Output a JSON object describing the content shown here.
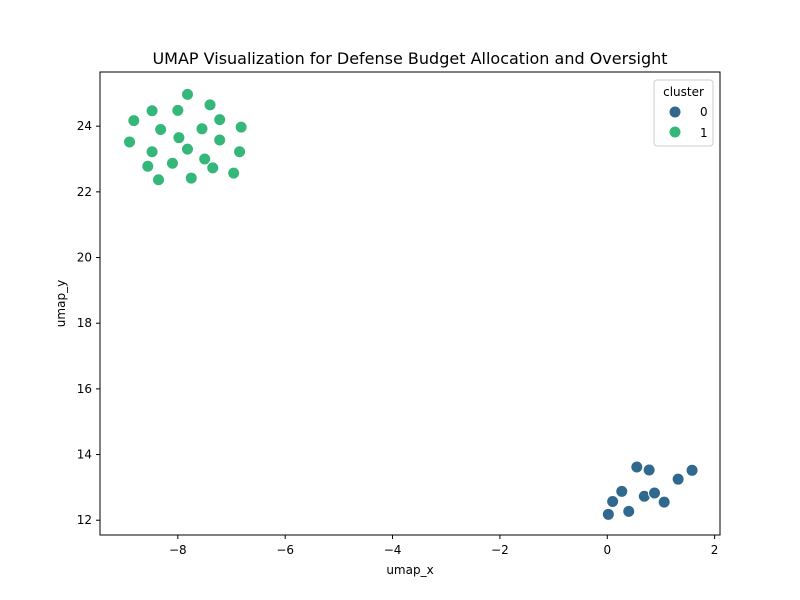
{
  "chart_data": {
    "type": "scatter",
    "title": "UMAP Visualization for Defense Budget Allocation and Oversight",
    "xlabel": "umap_x",
    "ylabel": "umap_y",
    "xlim": [
      -9.45,
      2.1
    ],
    "ylim": [
      11.55,
      25.65
    ],
    "xticks": [
      -8,
      -6,
      -4,
      -2,
      0,
      2
    ],
    "yticks": [
      12,
      14,
      16,
      18,
      20,
      22,
      24
    ],
    "xtick_labels": [
      "−8",
      "−6",
      "−4",
      "−2",
      "0",
      "2"
    ],
    "ytick_labels": [
      "12",
      "14",
      "16",
      "18",
      "20",
      "22",
      "24"
    ],
    "grid": false,
    "legend": {
      "title": "cluster",
      "placement": "top-right",
      "entries": [
        {
          "label": "0",
          "color": "#31688e"
        },
        {
          "label": "1",
          "color": "#35b779"
        }
      ]
    },
    "series": [
      {
        "cluster": "0",
        "color": "#31688e",
        "points": [
          {
            "x": 0.02,
            "y": 12.18
          },
          {
            "x": 0.1,
            "y": 12.57
          },
          {
            "x": 0.27,
            "y": 12.88
          },
          {
            "x": 0.4,
            "y": 12.27
          },
          {
            "x": 0.55,
            "y": 13.62
          },
          {
            "x": 0.69,
            "y": 12.73
          },
          {
            "x": 0.78,
            "y": 13.53
          },
          {
            "x": 0.88,
            "y": 12.83
          },
          {
            "x": 1.06,
            "y": 12.55
          },
          {
            "x": 1.32,
            "y": 13.25
          },
          {
            "x": 1.58,
            "y": 13.52
          }
        ]
      },
      {
        "cluster": "1",
        "color": "#35b779",
        "points": [
          {
            "x": -8.9,
            "y": 23.52
          },
          {
            "x": -8.82,
            "y": 24.17
          },
          {
            "x": -8.56,
            "y": 22.78
          },
          {
            "x": -8.48,
            "y": 23.22
          },
          {
            "x": -8.48,
            "y": 24.47
          },
          {
            "x": -8.36,
            "y": 22.37
          },
          {
            "x": -8.32,
            "y": 23.9
          },
          {
            "x": -8.1,
            "y": 22.87
          },
          {
            "x": -8.0,
            "y": 24.48
          },
          {
            "x": -7.98,
            "y": 23.65
          },
          {
            "x": -7.82,
            "y": 23.3
          },
          {
            "x": -7.82,
            "y": 24.97
          },
          {
            "x": -7.75,
            "y": 22.42
          },
          {
            "x": -7.55,
            "y": 23.92
          },
          {
            "x": -7.5,
            "y": 23.0
          },
          {
            "x": -7.4,
            "y": 24.65
          },
          {
            "x": -7.35,
            "y": 22.73
          },
          {
            "x": -7.22,
            "y": 24.2
          },
          {
            "x": -7.22,
            "y": 23.58
          },
          {
            "x": -6.96,
            "y": 22.57
          },
          {
            "x": -6.85,
            "y": 23.22
          },
          {
            "x": -6.82,
            "y": 23.97
          }
        ]
      }
    ]
  }
}
